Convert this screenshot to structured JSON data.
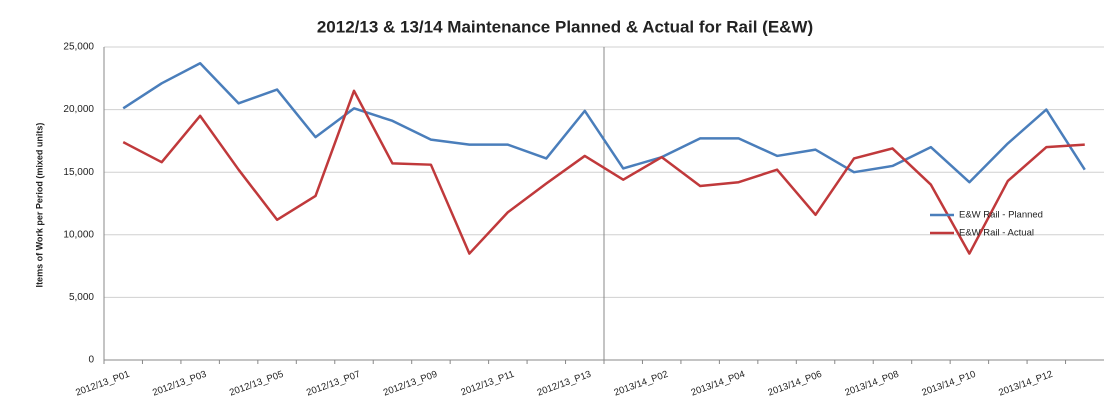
{
  "chart_data": {
    "type": "line",
    "title": "2012/13 & 13/14 Maintenance Planned & Actual for Rail (E&W)",
    "y_label": "Items of Work per Period (mixed units)",
    "categories": [
      "2012/13_P01",
      null,
      "2012/13_P03",
      null,
      "2012/13_P05",
      null,
      "2012/13_P07",
      null,
      "2012/13_P09",
      null,
      "2012/13_P11",
      null,
      "2012/13_P13",
      null,
      "2013/14_P02",
      null,
      "2013/14_P04",
      null,
      "2013/14_P06",
      null,
      "2013/14_P08",
      null,
      "2013/14_P10",
      null,
      "2013/14_P12",
      null
    ],
    "series": [
      {
        "name": "E&W Rail - Planned",
        "color": "#4a7ebb",
        "values": [
          20100,
          22100,
          23700,
          20500,
          21600,
          17800,
          20100,
          19100,
          17600,
          17200,
          17200,
          16100,
          19900,
          15300,
          16200,
          17700,
          17700,
          16300,
          16800,
          15000,
          15500,
          17000,
          14200,
          17300,
          20000,
          15200
        ]
      },
      {
        "name": "E&W Rail - Actual",
        "color": "#c0393b",
        "values": [
          17400,
          15800,
          19500,
          15200,
          11200,
          13100,
          21500,
          15700,
          15600,
          8500,
          11800,
          14100,
          16300,
          14400,
          16200,
          13900,
          14200,
          15200,
          11600,
          16100,
          16900,
          14000,
          8500,
          14300,
          17000,
          17200
        ]
      }
    ],
    "ylim": [
      0,
      25000
    ],
    "yticks": [
      0,
      {
        "value": 5000,
        "label": "5,000"
      },
      {
        "value": 10000,
        "label": "10,000"
      },
      {
        "value": 15000,
        "label": "15,000"
      },
      {
        "value": 20000,
        "label": "20,000"
      },
      {
        "value": 25000,
        "label": "25,000"
      }
    ],
    "grid": true,
    "legend": "right"
  }
}
